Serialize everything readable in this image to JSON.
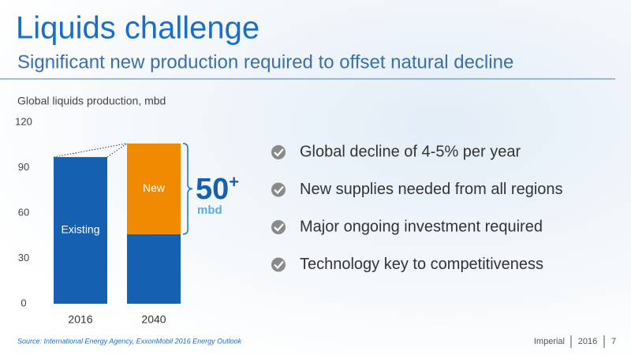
{
  "header": {
    "title": "Liquids challenge",
    "subtitle": "Significant new production required to offset natural decline"
  },
  "chart_data": {
    "type": "stacked_bar",
    "title": "Global liquids production, mbd",
    "categories": [
      "2016",
      "2040"
    ],
    "series": [
      {
        "name": "Existing",
        "color": "#1560b0",
        "values": [
          97,
          46
        ]
      },
      {
        "name": "New",
        "color": "#f08a00",
        "values": [
          null,
          60
        ]
      }
    ],
    "ylim": [
      0,
      120
    ],
    "yticks": [
      0,
      30,
      60,
      90,
      120
    ],
    "grid": false,
    "annotation": {
      "value": "50",
      "suffix": "+",
      "unit": "mbd"
    }
  },
  "bullets": [
    "Global decline of 4-5% per year",
    "New supplies needed from all regions",
    "Major ongoing investment required",
    "Technology key to competitiveness"
  ],
  "footer": {
    "source": "Source: International Energy Agency, ExxonMobil 2016 Energy Outlook",
    "company": "Imperial",
    "year": "2016",
    "page": "7"
  }
}
